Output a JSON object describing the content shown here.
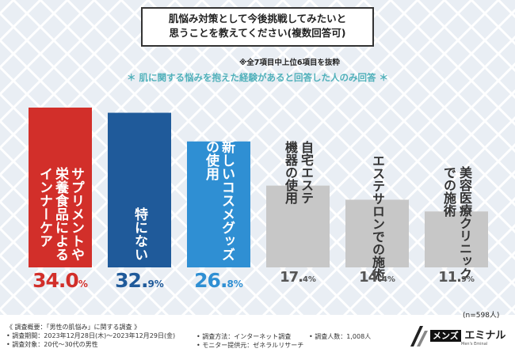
{
  "title": {
    "line1": "肌悩み対策として今後挑戦してみたいと",
    "line2": "思うことを教えてください(複数回答可)"
  },
  "note_top": "※全7項目中上位6項目を抜粋",
  "note_sub": "＊ 肌に関する悩みを抱えた経験があると回答した人のみ回答 ＊",
  "chart_data": {
    "type": "bar",
    "title": "肌悩み対策として今後挑戦してみたいと思うことを教えてください(複数回答可)",
    "categories": [
      "サプリメントや栄養食品によるインナーケア",
      "特にない",
      "新しいコスメグッズの使用",
      "自宅エステ機器の使用",
      "エステサロンでの施術",
      "美容医療クリニックでの施術"
    ],
    "label_lines": [
      [
        "サプリメントや",
        "栄養食品による",
        "インナーケア"
      ],
      [
        "特にない"
      ],
      [
        "新しいコスメグッズ",
        "の使用"
      ],
      [
        "自宅エステ",
        "機器の使用"
      ],
      [
        "エステサロンでの施術"
      ],
      [
        "美容医療クリニック",
        "での施術"
      ]
    ],
    "values": [
      34.0,
      32.9,
      26.8,
      17.4,
      14.4,
      11.9
    ],
    "value_labels": [
      {
        "big": "34.0",
        "small": "%"
      },
      {
        "big": "32.",
        "small": "9%"
      },
      {
        "big": "26.",
        "small": "8%"
      },
      {
        "big": "17.",
        "small": "4%"
      },
      {
        "big": "14.",
        "small": "4%"
      },
      {
        "big": "11.",
        "small": "9%"
      }
    ],
    "colors": [
      "#d22f2a",
      "#1f5a9a",
      "#2f8fd3",
      "#c7c7c7",
      "#c7c7c7",
      "#c7c7c7"
    ],
    "pct_colors": [
      "#d22f2a",
      "#1f5a9a",
      "#2f8fd3",
      "#555555",
      "#555555",
      "#555555"
    ],
    "ylim": [
      0,
      36
    ],
    "sample": "(n=598人)"
  },
  "footer": {
    "line1": "《 調査概要：「男性の肌悩み」に関する調査 》",
    "line2": "• 調査期間：2023年12月28日(木)〜2023年12月29日(金)",
    "line3": "• 調査対象：20代〜30代の男性",
    "method": "• 調査方法：インターネット調査",
    "provider": "• モニター提供元：ゼネラルリサーチ",
    "count": "• 調査人数：1,008人"
  },
  "logo": {
    "part1": "メンズ",
    "part2": "エミナル",
    "sub": "Men's Eminal"
  }
}
